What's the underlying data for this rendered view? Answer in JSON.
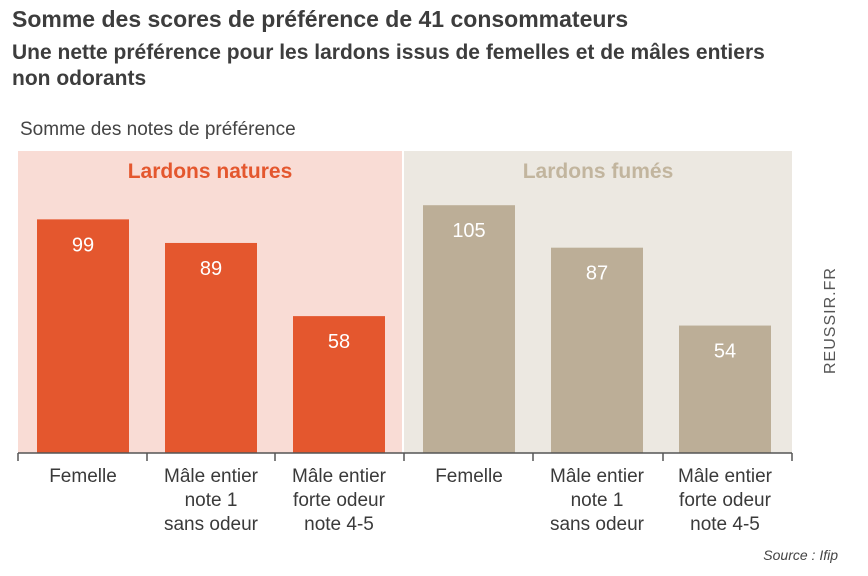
{
  "title": "Somme des scores de préférence de 41 consommateurs",
  "subtitle": "Une nette préférence pour les lardons issus de femelles et de mâles entiers non odorants",
  "source": "Source : Ifip",
  "watermark": "REUSSIR.FR",
  "colors": {
    "natures_bar": "#e4572e",
    "natures_panel": "#f9dcd5",
    "natures_title": "#e4572e",
    "fumes_bar": "#bcae97",
    "fumes_panel": "#ece8e1",
    "fumes_title": "#c2b59e",
    "bar_label": "#ffffff"
  },
  "chart_data": {
    "type": "bar",
    "ylabel": "Somme des notes de préférence",
    "ylim": [
      0,
      105
    ],
    "groups": [
      {
        "name": "Lardons natures",
        "categories": [
          "Femelle",
          "Mâle entier note 1 sans odeur",
          "Mâle entier forte odeur note 4-5"
        ],
        "category_lines": [
          [
            "Femelle"
          ],
          [
            "Mâle entier",
            "note 1",
            "sans odeur"
          ],
          [
            "Mâle entier",
            "forte odeur",
            "note 4-5"
          ]
        ],
        "values": [
          99,
          89,
          58
        ]
      },
      {
        "name": "Lardons fumés",
        "categories": [
          "Femelle",
          "Mâle entier note 1 sans odeur",
          "Mâle entier forte odeur note 4-5"
        ],
        "category_lines": [
          [
            "Femelle"
          ],
          [
            "Mâle entier",
            "note 1",
            "sans odeur"
          ],
          [
            "Mâle entier",
            "forte odeur",
            "note 4-5"
          ]
        ],
        "values": [
          105,
          87,
          54
        ]
      }
    ]
  }
}
